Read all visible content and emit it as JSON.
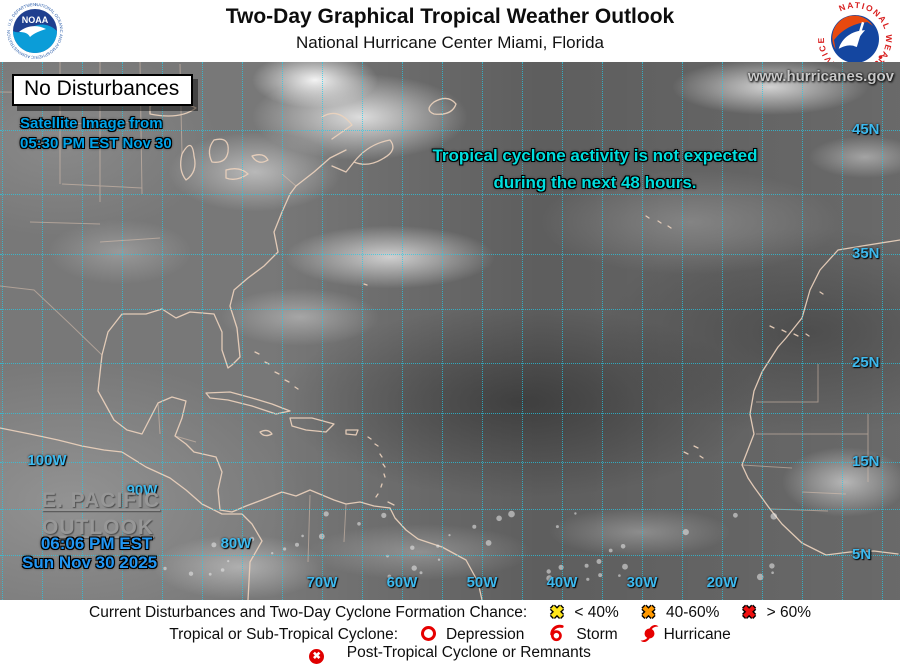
{
  "header": {
    "title": "Two-Day Graphical Tropical Weather Outlook",
    "subtitle": "National Hurricane Center  Miami, Florida",
    "noaa_logo_text": "NOAA",
    "nws_logo_text": "NATIONAL WEATHER SERVICE"
  },
  "map": {
    "status_box": "No Disturbances",
    "satellite_caption_line1": "Satellite Image from",
    "satellite_caption_line2": "05:30 PM EST Nov 30",
    "website": "www.hurricanes.gov",
    "message_line1": "Tropical cyclone activity is not expected",
    "message_line2": "during the next 48 hours.",
    "lat_labels": [
      "45N",
      "35N",
      "25N",
      "15N",
      "5N"
    ],
    "lon_labels_left": [
      "100W",
      "90W",
      "80W"
    ],
    "lon_labels_bottom": [
      "70W",
      "60W",
      "50W",
      "40W",
      "30W",
      "20W"
    ],
    "pacific_link_line1": "E. PACIFIC",
    "pacific_link_line2": "OUTLOOK",
    "issued_time": "06:06 PM EST",
    "issued_date": "Sun Nov 30 2025",
    "colors": {
      "grid": "#22cdeb",
      "grid_label": "#3db9ee",
      "message": "#00dede",
      "satellite_caption": "#00a2e8",
      "issued": "#2196f3",
      "coastline": "#ecd2bd"
    }
  },
  "legend": {
    "line1_label": "Current Disturbances and Two-Day Cyclone Formation Chance:",
    "chances": [
      {
        "symbol": "x-yellow",
        "label": "< 40%",
        "color": "#ffe61a"
      },
      {
        "symbol": "x-orange",
        "label": "40-60%",
        "color": "#ff9900"
      },
      {
        "symbol": "x-red",
        "label": "> 60%",
        "color": "#ee1111"
      }
    ],
    "line2_label": "Tropical or Sub-Tropical Cyclone:",
    "cyclone_types": [
      {
        "symbol": "depression-icon",
        "label": "Depression"
      },
      {
        "symbol": "storm-icon",
        "label": "Storm"
      },
      {
        "symbol": "hurricane-icon",
        "label": "Hurricane"
      }
    ],
    "line3_label": "Post-Tropical Cyclone or Remnants",
    "symbol_red": "#e60000"
  }
}
